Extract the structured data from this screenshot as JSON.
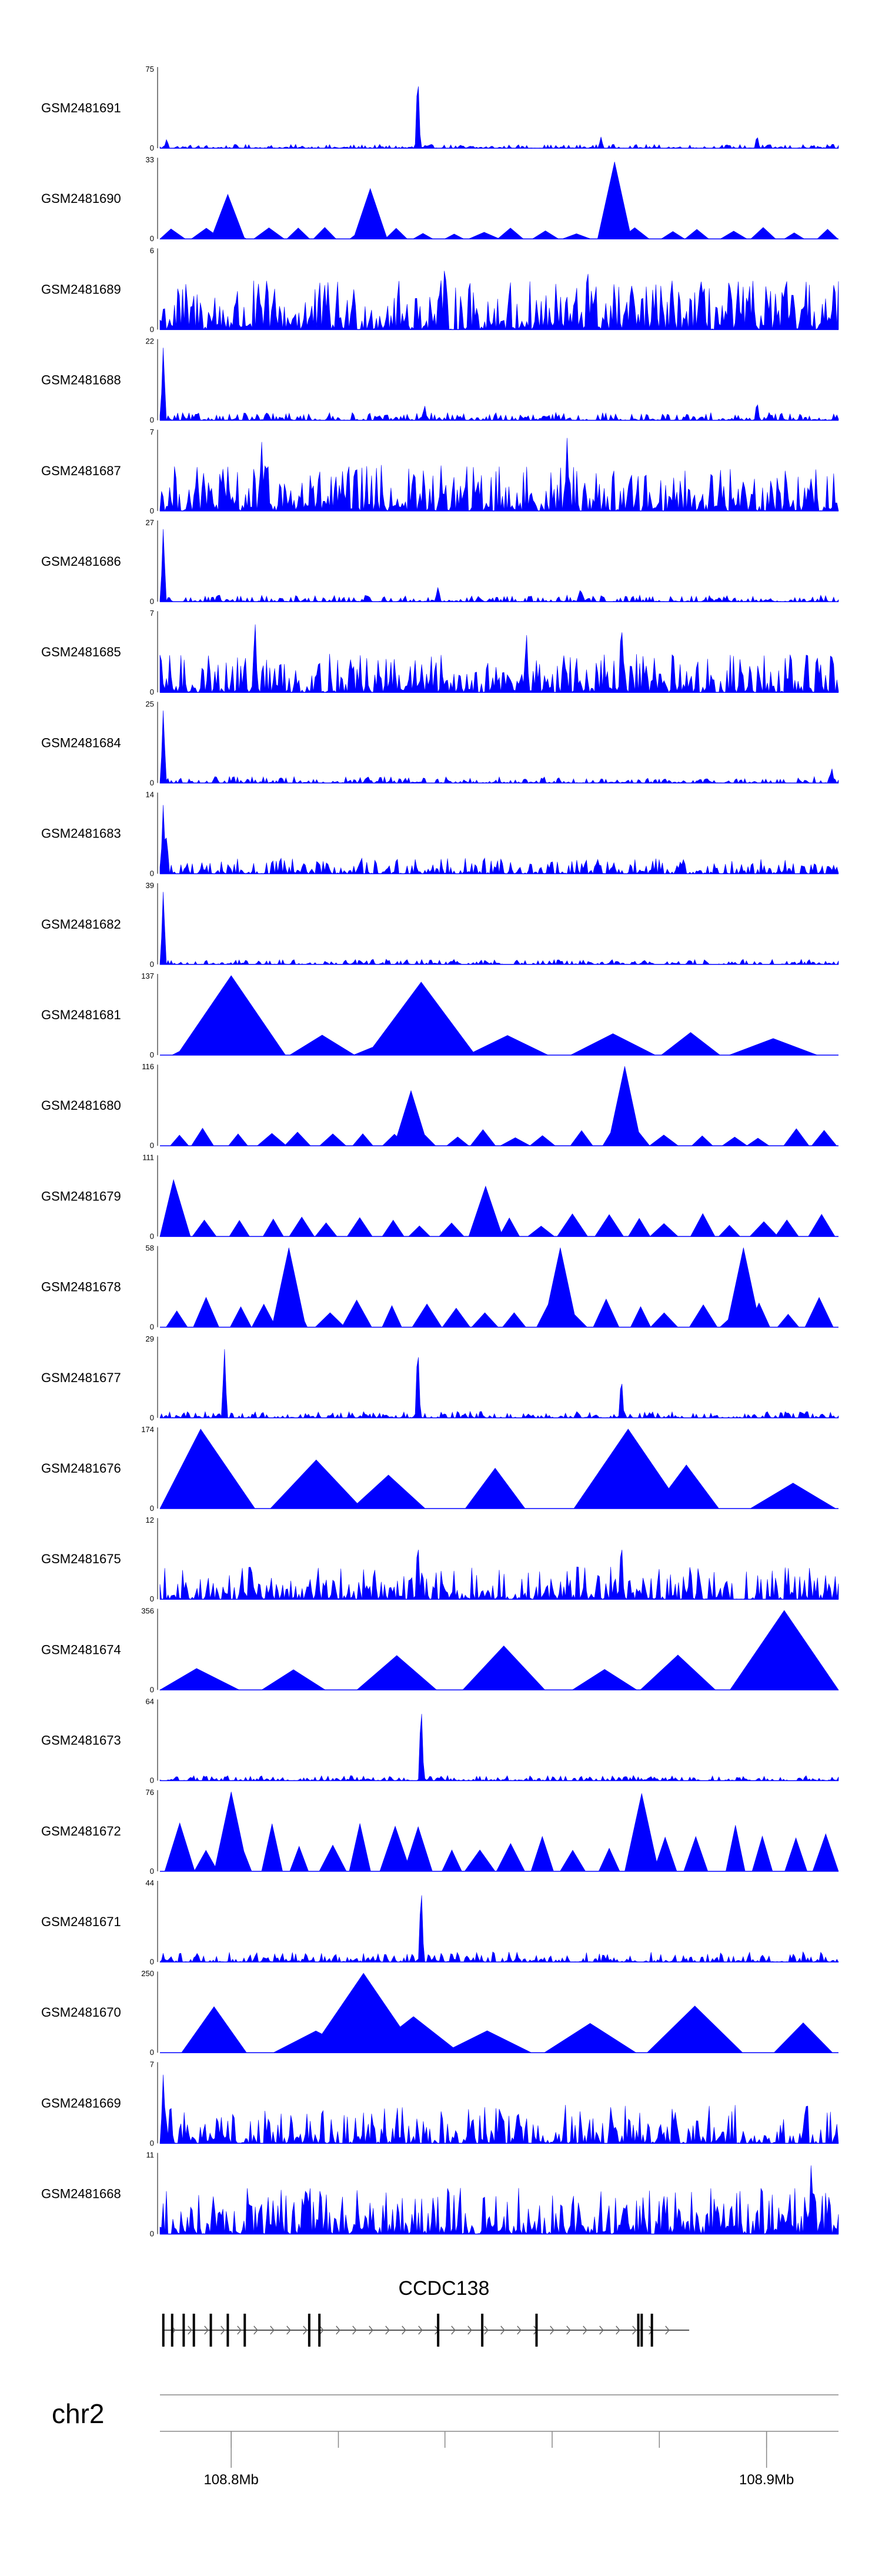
{
  "chart_data": {
    "type": "area",
    "title": "",
    "region": {
      "chrom": "chr2",
      "start_mb": 108.786,
      "end_mb": 108.914
    },
    "series_color": "#0000ff",
    "tracks": [
      {
        "name": "GSM2481691",
        "ymax": "75",
        "ymin": "0",
        "style": "dense-low",
        "base": 3,
        "peaks": [
          {
            "pos": 0.38,
            "h": 1.0
          },
          {
            "pos": 0.65,
            "h": 0.14
          },
          {
            "pos": 0.88,
            "h": 0.17
          },
          {
            "pos": 0.01,
            "h": 0.12
          }
        ]
      },
      {
        "name": "GSM2481690",
        "ymax": "33",
        "ymin": "0",
        "style": "triangles-many",
        "base": 10,
        "peaks": [
          {
            "pos": 0.67,
            "h": 0.95
          },
          {
            "pos": 0.31,
            "h": 0.62
          },
          {
            "pos": 0.1,
            "h": 0.55
          }
        ]
      },
      {
        "name": "GSM2481689",
        "ymax": "6",
        "ymin": "0",
        "style": "dense-high",
        "base": 32,
        "peaks": [
          {
            "pos": 0.42,
            "h": 0.95
          },
          {
            "pos": 0.63,
            "h": 0.9
          }
        ]
      },
      {
        "name": "GSM2481688",
        "ymax": "22",
        "ymin": "0",
        "style": "dense-low",
        "base": 6,
        "peaks": [
          {
            "pos": 0.005,
            "h": 0.95
          },
          {
            "pos": 0.39,
            "h": 0.2
          },
          {
            "pos": 0.88,
            "h": 0.25
          }
        ]
      },
      {
        "name": "GSM2481687",
        "ymax": "7",
        "ymin": "0",
        "style": "dense-high",
        "base": 30,
        "peaks": [
          {
            "pos": 0.15,
            "h": 0.85
          },
          {
            "pos": 0.6,
            "h": 0.9
          }
        ]
      },
      {
        "name": "GSM2481686",
        "ymax": "27",
        "ymin": "0",
        "style": "dense-low",
        "base": 5,
        "peaks": [
          {
            "pos": 0.005,
            "h": 0.95
          },
          {
            "pos": 0.41,
            "h": 0.2
          },
          {
            "pos": 0.62,
            "h": 0.18
          }
        ]
      },
      {
        "name": "GSM2481685",
        "ymax": "7",
        "ymin": "0",
        "style": "dense-high",
        "base": 25,
        "peaks": [
          {
            "pos": 0.14,
            "h": 0.95
          },
          {
            "pos": 0.54,
            "h": 0.8
          },
          {
            "pos": 0.68,
            "h": 0.97
          }
        ]
      },
      {
        "name": "GSM2481684",
        "ymax": "25",
        "ymin": "0",
        "style": "dense-low",
        "base": 5,
        "peaks": [
          {
            "pos": 0.005,
            "h": 0.95
          },
          {
            "pos": 0.99,
            "h": 0.2
          }
        ]
      },
      {
        "name": "GSM2481683",
        "ymax": "14",
        "ymin": "0",
        "style": "dense-low",
        "base": 12,
        "peaks": [
          {
            "pos": 0.005,
            "h": 0.9
          },
          {
            "pos": 0.01,
            "h": 0.5
          }
        ]
      },
      {
        "name": "GSM2481682",
        "ymax": "39",
        "ymin": "0",
        "style": "dense-low",
        "base": 4,
        "peaks": [
          {
            "pos": 0.005,
            "h": 0.95
          }
        ]
      },
      {
        "name": "GSM2481681",
        "ymax": "137",
        "ymin": "0",
        "style": "triangles-few",
        "base": 25,
        "peaks": [
          {
            "pos": 0.105,
            "h": 0.98
          },
          {
            "pos": 0.385,
            "h": 0.9
          }
        ]
      },
      {
        "name": "GSM2481680",
        "ymax": "116",
        "ymin": "0",
        "style": "triangles-many",
        "base": 15,
        "peaks": [
          {
            "pos": 0.685,
            "h": 0.98
          },
          {
            "pos": 0.37,
            "h": 0.68
          }
        ]
      },
      {
        "name": "GSM2481679",
        "ymax": "111",
        "ymin": "0",
        "style": "triangles-many",
        "base": 20,
        "peaks": [
          {
            "pos": 0.02,
            "h": 0.7
          },
          {
            "pos": 0.48,
            "h": 0.62
          }
        ]
      },
      {
        "name": "GSM2481678",
        "ymax": "58",
        "ymin": "0",
        "style": "triangles-many",
        "base": 25,
        "peaks": [
          {
            "pos": 0.19,
            "h": 0.98
          },
          {
            "pos": 0.59,
            "h": 0.98
          },
          {
            "pos": 0.86,
            "h": 0.98
          }
        ]
      },
      {
        "name": "GSM2481677",
        "ymax": "29",
        "ymin": "0",
        "style": "dense-low",
        "base": 5,
        "peaks": [
          {
            "pos": 0.38,
            "h": 0.98
          },
          {
            "pos": 0.095,
            "h": 0.9
          },
          {
            "pos": 0.68,
            "h": 0.55
          }
        ]
      },
      {
        "name": "GSM2481676",
        "ymax": "174",
        "ymin": "0",
        "style": "triangles-few",
        "base": 40,
        "peaks": [
          {
            "pos": 0.06,
            "h": 0.98
          },
          {
            "pos": 0.69,
            "h": 0.98
          }
        ]
      },
      {
        "name": "GSM2481675",
        "ymax": "12",
        "ymin": "0",
        "style": "dense-low",
        "base": 25,
        "peaks": [
          {
            "pos": 0.38,
            "h": 0.8
          },
          {
            "pos": 0.68,
            "h": 0.8
          }
        ]
      },
      {
        "name": "GSM2481674",
        "ymax": "356",
        "ymin": "0",
        "style": "triangles-few",
        "base": 40,
        "peaks": [
          {
            "pos": 0.92,
            "h": 0.98
          }
        ]
      },
      {
        "name": "GSM2481673",
        "ymax": "64",
        "ymin": "0",
        "style": "dense-low",
        "base": 4,
        "peaks": [
          {
            "pos": 0.385,
            "h": 1.0
          }
        ]
      },
      {
        "name": "GSM2481672",
        "ymax": "76",
        "ymin": "0",
        "style": "triangles-many",
        "base": 40,
        "peaks": [
          {
            "pos": 0.105,
            "h": 0.98
          },
          {
            "pos": 0.71,
            "h": 0.96
          }
        ]
      },
      {
        "name": "GSM2481671",
        "ymax": "44",
        "ymin": "0",
        "style": "dense-low",
        "base": 8,
        "peaks": [
          {
            "pos": 0.385,
            "h": 1.0
          }
        ]
      },
      {
        "name": "GSM2481670",
        "ymax": "250",
        "ymin": "0",
        "style": "triangles-few",
        "base": 40,
        "peaks": [
          {
            "pos": 0.3,
            "h": 0.98
          }
        ]
      },
      {
        "name": "GSM2481669",
        "ymax": "7",
        "ymin": "0",
        "style": "dense-low",
        "base": 30,
        "peaks": [
          {
            "pos": 0.005,
            "h": 0.9
          }
        ]
      },
      {
        "name": "GSM2481668",
        "ymax": "11",
        "ymin": "0",
        "style": "dense-high",
        "base": 30,
        "peaks": [
          {
            "pos": 0.96,
            "h": 0.96
          }
        ]
      }
    ],
    "gene": {
      "name": "CCDC138",
      "start_frac": 0.005,
      "end_frac": 0.78,
      "strand": "+",
      "exons_frac": [
        0.005,
        0.018,
        0.035,
        0.05,
        0.075,
        0.1,
        0.125,
        0.22,
        0.235,
        0.41,
        0.475,
        0.555,
        0.705,
        0.71,
        0.725
      ]
    },
    "chrom_axis": {
      "label": "chr2",
      "ticks_frac": [
        0.105,
        0.263,
        0.42,
        0.578,
        0.736,
        0.894
      ],
      "tick_labels": [
        {
          "frac": 0.105,
          "label": "108.8Mb"
        },
        {
          "frac": 0.894,
          "label": "108.9Mb"
        }
      ]
    }
  }
}
